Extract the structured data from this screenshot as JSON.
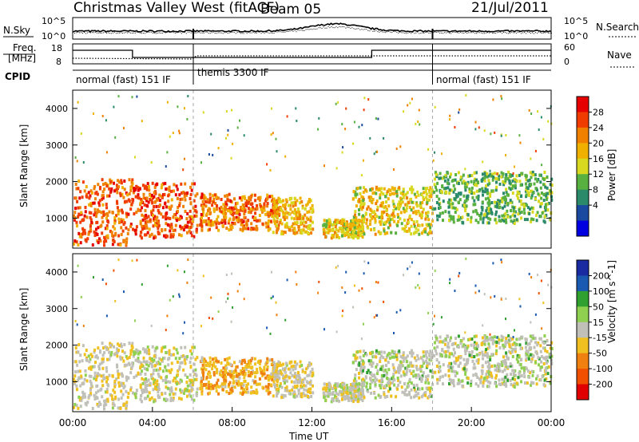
{
  "header": {
    "title": "Christmas Valley West (fitACF)",
    "beam": "Beam 05",
    "date": "21/Jul/2011"
  },
  "top_panels": {
    "nsky_label": "N.Sky",
    "nsky_ticks": [
      "10^5",
      "10^0"
    ],
    "nsearch_label": "N.Search",
    "nsearch_ticks": [
      "10^5",
      "10^0"
    ],
    "freq_label_1": "Freq.",
    "freq_label_2": "[MHz]",
    "freq_ticks": [
      "18",
      "8"
    ],
    "nave_label": "Nave",
    "nave_ticks": [
      "60",
      "0"
    ],
    "cpid_label": "CPID",
    "cpid_segments": [
      {
        "label": "normal (fast) 151 IF",
        "start_hr": 0,
        "end_hr": 6.0
      },
      {
        "label": "themis 3300 IF",
        "start_hr": 6.0,
        "end_hr": 18.0
      },
      {
        "label": "normal (fast) 151 IF",
        "start_hr": 18.0,
        "end_hr": 24.0
      }
    ]
  },
  "power_colorbar": {
    "label": "Power [dB]",
    "ticks": [
      "28",
      "24",
      "20",
      "16",
      "12",
      "8",
      "4"
    ],
    "colors": [
      "#e60000",
      "#f03c00",
      "#f08000",
      "#f0b000",
      "#d8d820",
      "#58b040",
      "#2a8a6a",
      "#1a4aa0",
      "#0000e0"
    ]
  },
  "velocity_colorbar": {
    "label": "Velocity [m s^-1]",
    "ticks": [
      "200",
      "100",
      "50",
      "15",
      "-15",
      "-50",
      "-100",
      "-200"
    ],
    "colors": [
      "#1a2aa0",
      "#1a5ab0",
      "#30a030",
      "#90d050",
      "#c0c0b8",
      "#f0c020",
      "#f08010",
      "#f05000",
      "#e00000"
    ]
  },
  "axes": {
    "ylabel": "Slant Range [km]",
    "yticks": [
      "4000",
      "3000",
      "2000",
      "1000"
    ],
    "xlabel": "Time UT",
    "xticks": [
      "00:00",
      "04:00",
      "08:00",
      "12:00",
      "16:00",
      "20:00",
      "00:00"
    ]
  },
  "chart_data": {
    "type": "heatmap",
    "title": "Christmas Valley West (fitACF)",
    "subtitle": "Beam 05",
    "date": "21/Jul/2011",
    "xlabel": "Time UT",
    "ylabel": "Slant Range [km]",
    "x_range_hours": [
      0,
      24
    ],
    "y_range_km": [
      180,
      4500
    ],
    "scatter_regions": [
      {
        "t0": 0.0,
        "t1": 3.0,
        "r0": 300,
        "r1": 2100,
        "power": 26,
        "velocity": -10
      },
      {
        "t0": 3.0,
        "t1": 6.2,
        "r0": 500,
        "r1": 2000,
        "power": 27,
        "velocity": 0
      },
      {
        "t0": 6.3,
        "t1": 10.3,
        "r0": 700,
        "r1": 1700,
        "power": 25,
        "velocity": -40
      },
      {
        "t0": 10.0,
        "t1": 12.0,
        "r0": 600,
        "r1": 1600,
        "power": 20,
        "velocity": -10
      },
      {
        "t0": 12.5,
        "t1": 14.5,
        "r0": 500,
        "r1": 1000,
        "power": 18,
        "velocity": 0
      },
      {
        "t0": 14.0,
        "t1": 18.0,
        "r0": 600,
        "r1": 1900,
        "power": 18,
        "velocity": 5
      },
      {
        "t0": 18.0,
        "t1": 24.0,
        "r0": 900,
        "r1": 2300,
        "power": 12,
        "velocity": 5
      }
    ]
  }
}
